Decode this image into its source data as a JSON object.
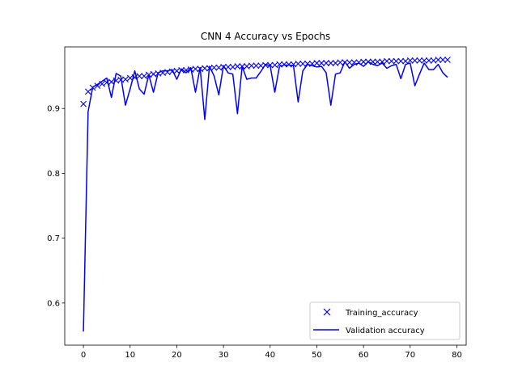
{
  "chart_data": {
    "type": "line",
    "title": "CNN 4 Accuracy vs Epochs",
    "xlabel": "",
    "ylabel": "",
    "xlim": [
      -4,
      82
    ],
    "ylim": [
      0.535,
      0.995
    ],
    "xticks": [
      0,
      10,
      20,
      30,
      40,
      50,
      60,
      70,
      80
    ],
    "yticks": [
      0.6,
      0.7,
      0.8,
      0.9
    ],
    "ytick_labels": [
      "0.6",
      "0.7",
      "0.8",
      "0.9"
    ],
    "grid": false,
    "legend_position": "lower-right",
    "color": "#0000ff",
    "x": [
      0,
      1,
      2,
      3,
      4,
      5,
      6,
      7,
      8,
      9,
      10,
      11,
      12,
      13,
      14,
      15,
      16,
      17,
      18,
      19,
      20,
      21,
      22,
      23,
      24,
      25,
      26,
      27,
      28,
      29,
      30,
      31,
      32,
      33,
      34,
      35,
      36,
      37,
      38,
      39,
      40,
      41,
      42,
      43,
      44,
      45,
      46,
      47,
      48,
      49,
      50,
      51,
      52,
      53,
      54,
      55,
      56,
      57,
      58,
      59,
      60,
      61,
      62,
      63,
      64,
      65,
      66,
      67,
      68,
      69,
      70,
      71,
      72,
      73,
      74,
      75,
      76,
      77,
      78
    ],
    "series": [
      {
        "name": "Training_accuracy",
        "marker": "x",
        "values": [
          0.907,
          0.926,
          0.932,
          0.935,
          0.938,
          0.94,
          0.941,
          0.943,
          0.944,
          0.945,
          0.947,
          0.948,
          0.95,
          0.95,
          0.952,
          0.953,
          0.954,
          0.955,
          0.956,
          0.957,
          0.958,
          0.959,
          0.959,
          0.96,
          0.961,
          0.961,
          0.962,
          0.962,
          0.963,
          0.963,
          0.964,
          0.964,
          0.964,
          0.965,
          0.965,
          0.965,
          0.966,
          0.966,
          0.966,
          0.967,
          0.967,
          0.967,
          0.968,
          0.968,
          0.968,
          0.968,
          0.969,
          0.969,
          0.969,
          0.969,
          0.97,
          0.97,
          0.97,
          0.97,
          0.97,
          0.971,
          0.971,
          0.971,
          0.971,
          0.971,
          0.972,
          0.972,
          0.972,
          0.972,
          0.972,
          0.973,
          0.973,
          0.973,
          0.973,
          0.973,
          0.974,
          0.974,
          0.974,
          0.974,
          0.974,
          0.974,
          0.975,
          0.975,
          0.975
        ]
      },
      {
        "name": "Validation accuracy",
        "marker": "line",
        "values": [
          0.556,
          0.895,
          0.933,
          0.937,
          0.942,
          0.947,
          0.917,
          0.954,
          0.95,
          0.905,
          0.93,
          0.958,
          0.93,
          0.922,
          0.952,
          0.925,
          0.955,
          0.958,
          0.958,
          0.96,
          0.945,
          0.961,
          0.955,
          0.963,
          0.925,
          0.963,
          0.883,
          0.965,
          0.95,
          0.921,
          0.966,
          0.955,
          0.953,
          0.892,
          0.965,
          0.945,
          0.947,
          0.947,
          0.957,
          0.968,
          0.966,
          0.925,
          0.965,
          0.967,
          0.967,
          0.966,
          0.91,
          0.958,
          0.968,
          0.966,
          0.964,
          0.965,
          0.955,
          0.905,
          0.953,
          0.955,
          0.972,
          0.962,
          0.968,
          0.97,
          0.965,
          0.972,
          0.968,
          0.966,
          0.97,
          0.962,
          0.966,
          0.968,
          0.946,
          0.968,
          0.97,
          0.935,
          0.953,
          0.97,
          0.96,
          0.96,
          0.968,
          0.955,
          0.948
        ]
      }
    ]
  }
}
